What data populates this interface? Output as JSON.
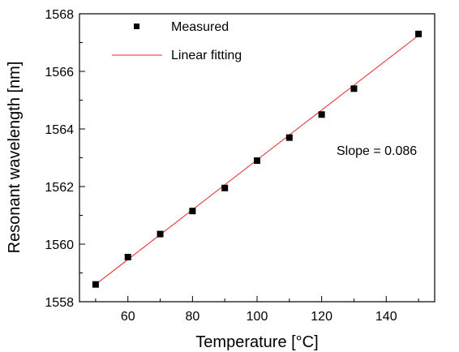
{
  "chart_data": {
    "type": "scatter",
    "title": "",
    "xlabel": "Temperature [°C]",
    "ylabel": "Resonant wavelength [nm]",
    "xlim": [
      45,
      155
    ],
    "ylim": [
      1558,
      1568
    ],
    "xticks": [
      60,
      80,
      100,
      120,
      140
    ],
    "xticks_minor": [
      50,
      70,
      90,
      110,
      130,
      150
    ],
    "yticks": [
      1558,
      1560,
      1562,
      1564,
      1566,
      1568
    ],
    "yticks_minor": [
      1559,
      1561,
      1563,
      1565,
      1567
    ],
    "grid": false,
    "legend_position": "top-left",
    "series": [
      {
        "name": "Measured",
        "kind": "markers",
        "marker": "square",
        "color": "#000000",
        "points": [
          [
            50,
            1558.6
          ],
          [
            60,
            1559.55
          ],
          [
            70,
            1560.35
          ],
          [
            80,
            1561.15
          ],
          [
            90,
            1561.95
          ],
          [
            100,
            1562.9
          ],
          [
            110,
            1563.7
          ],
          [
            120,
            1564.5
          ],
          [
            130,
            1565.4
          ],
          [
            150,
            1567.3
          ]
        ]
      },
      {
        "name": "Linear fitting",
        "kind": "line",
        "color": "#e8262a",
        "points": [
          [
            50,
            1558.6
          ],
          [
            150,
            1567.25
          ]
        ]
      }
    ],
    "annotations": [
      {
        "text": "Slope = 0.086",
        "x": 120,
        "y": 1563.2
      }
    ]
  }
}
